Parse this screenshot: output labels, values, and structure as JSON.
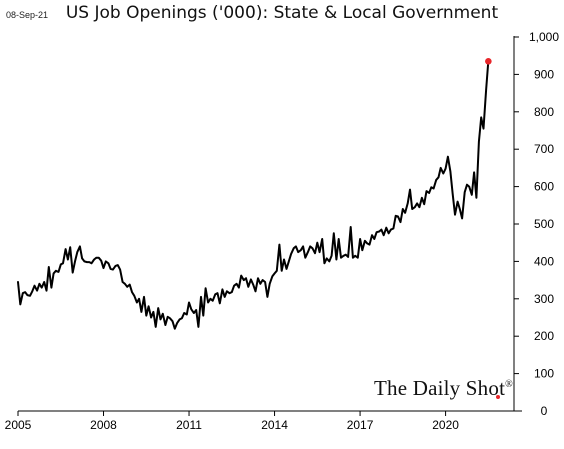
{
  "header": {
    "date_stamp": "08-Sep-21",
    "title": "US Job Openings ('000): State & Local Government"
  },
  "watermark": {
    "text": "The Daily Shot",
    "mark": "®"
  },
  "colors": {
    "line": "#000000",
    "marker": "#e8262a",
    "axis": "#000000",
    "background": "#ffffff"
  },
  "chart_data": {
    "type": "line",
    "title": "US Job Openings ('000): State & Local Government",
    "xlabel": "",
    "ylabel": "",
    "xlim": [
      2005.0,
      2022.4
    ],
    "ylim": [
      0,
      1000
    ],
    "x_ticks": [
      2005,
      2008,
      2011,
      2014,
      2017,
      2020
    ],
    "x_tick_labels": [
      "2005",
      "2008",
      "2011",
      "2014",
      "2017",
      "2020"
    ],
    "y_ticks": [
      0,
      100,
      200,
      300,
      400,
      500,
      600,
      700,
      800,
      900,
      1000
    ],
    "y_tick_labels": [
      "0",
      "100",
      "200",
      "300",
      "400",
      "500",
      "600",
      "700",
      "800",
      "900",
      "1,000"
    ],
    "y_axis_side": "right",
    "grid": false,
    "legend": "none",
    "series": [
      {
        "points": [
          [
            2005.0,
            345
          ],
          [
            2005.08,
            285
          ],
          [
            2005.17,
            315
          ],
          [
            2005.25,
            318
          ],
          [
            2005.33,
            310
          ],
          [
            2005.42,
            308
          ],
          [
            2005.5,
            320
          ],
          [
            2005.58,
            335
          ],
          [
            2005.67,
            322
          ],
          [
            2005.75,
            340
          ],
          [
            2005.83,
            330
          ],
          [
            2005.92,
            345
          ],
          [
            2006.0,
            322
          ],
          [
            2006.08,
            385
          ],
          [
            2006.17,
            330
          ],
          [
            2006.25,
            368
          ],
          [
            2006.33,
            375
          ],
          [
            2006.42,
            372
          ],
          [
            2006.5,
            392
          ],
          [
            2006.58,
            395
          ],
          [
            2006.67,
            433
          ],
          [
            2006.75,
            405
          ],
          [
            2006.83,
            438
          ],
          [
            2006.92,
            370
          ],
          [
            2007.0,
            400
          ],
          [
            2007.08,
            425
          ],
          [
            2007.17,
            440
          ],
          [
            2007.25,
            408
          ],
          [
            2007.33,
            400
          ],
          [
            2007.42,
            398
          ],
          [
            2007.5,
            398
          ],
          [
            2007.58,
            395
          ],
          [
            2007.67,
            405
          ],
          [
            2007.75,
            410
          ],
          [
            2007.83,
            410
          ],
          [
            2007.92,
            402
          ],
          [
            2008.0,
            382
          ],
          [
            2008.08,
            400
          ],
          [
            2008.17,
            395
          ],
          [
            2008.25,
            380
          ],
          [
            2008.33,
            378
          ],
          [
            2008.42,
            388
          ],
          [
            2008.5,
            390
          ],
          [
            2008.58,
            378
          ],
          [
            2008.67,
            345
          ],
          [
            2008.75,
            340
          ],
          [
            2008.83,
            332
          ],
          [
            2008.92,
            338
          ],
          [
            2009.0,
            318
          ],
          [
            2009.08,
            308
          ],
          [
            2009.17,
            290
          ],
          [
            2009.25,
            300
          ],
          [
            2009.33,
            265
          ],
          [
            2009.42,
            305
          ],
          [
            2009.5,
            255
          ],
          [
            2009.58,
            280
          ],
          [
            2009.67,
            250
          ],
          [
            2009.75,
            265
          ],
          [
            2009.83,
            225
          ],
          [
            2009.92,
            275
          ],
          [
            2010.0,
            245
          ],
          [
            2010.08,
            260
          ],
          [
            2010.17,
            230
          ],
          [
            2010.25,
            252
          ],
          [
            2010.33,
            248
          ],
          [
            2010.42,
            240
          ],
          [
            2010.5,
            220
          ],
          [
            2010.58,
            235
          ],
          [
            2010.67,
            245
          ],
          [
            2010.75,
            248
          ],
          [
            2010.83,
            262
          ],
          [
            2010.92,
            258
          ],
          [
            2011.0,
            290
          ],
          [
            2011.08,
            272
          ],
          [
            2011.17,
            262
          ],
          [
            2011.25,
            270
          ],
          [
            2011.33,
            225
          ],
          [
            2011.42,
            305
          ],
          [
            2011.5,
            255
          ],
          [
            2011.58,
            328
          ],
          [
            2011.67,
            290
          ],
          [
            2011.75,
            300
          ],
          [
            2011.83,
            295
          ],
          [
            2011.92,
            312
          ],
          [
            2012.0,
            315
          ],
          [
            2012.08,
            288
          ],
          [
            2012.17,
            325
          ],
          [
            2012.25,
            305
          ],
          [
            2012.33,
            320
          ],
          [
            2012.42,
            315
          ],
          [
            2012.5,
            318
          ],
          [
            2012.58,
            335
          ],
          [
            2012.67,
            340
          ],
          [
            2012.75,
            330
          ],
          [
            2012.83,
            362
          ],
          [
            2012.92,
            350
          ],
          [
            2013.0,
            355
          ],
          [
            2013.08,
            332
          ],
          [
            2013.17,
            352
          ],
          [
            2013.25,
            338
          ],
          [
            2013.33,
            320
          ],
          [
            2013.42,
            355
          ],
          [
            2013.5,
            340
          ],
          [
            2013.58,
            350
          ],
          [
            2013.67,
            345
          ],
          [
            2013.75,
            305
          ],
          [
            2013.83,
            340
          ],
          [
            2013.92,
            360
          ],
          [
            2014.0,
            368
          ],
          [
            2014.08,
            375
          ],
          [
            2014.17,
            445
          ],
          [
            2014.25,
            375
          ],
          [
            2014.33,
            405
          ],
          [
            2014.42,
            380
          ],
          [
            2014.5,
            400
          ],
          [
            2014.58,
            420
          ],
          [
            2014.67,
            435
          ],
          [
            2014.75,
            440
          ],
          [
            2014.83,
            425
          ],
          [
            2014.92,
            430
          ],
          [
            2015.0,
            440
          ],
          [
            2015.08,
            410
          ],
          [
            2015.17,
            425
          ],
          [
            2015.25,
            440
          ],
          [
            2015.33,
            435
          ],
          [
            2015.42,
            422
          ],
          [
            2015.5,
            450
          ],
          [
            2015.58,
            425
          ],
          [
            2015.67,
            460
          ],
          [
            2015.75,
            395
          ],
          [
            2015.83,
            408
          ],
          [
            2015.92,
            400
          ],
          [
            2016.0,
            415
          ],
          [
            2016.08,
            475
          ],
          [
            2016.17,
            405
          ],
          [
            2016.25,
            460
          ],
          [
            2016.33,
            410
          ],
          [
            2016.42,
            415
          ],
          [
            2016.5,
            418
          ],
          [
            2016.58,
            412
          ],
          [
            2016.67,
            492
          ],
          [
            2016.75,
            410
          ],
          [
            2016.83,
            415
          ],
          [
            2016.92,
            410
          ],
          [
            2017.0,
            460
          ],
          [
            2017.08,
            430
          ],
          [
            2017.17,
            455
          ],
          [
            2017.25,
            448
          ],
          [
            2017.33,
            445
          ],
          [
            2017.42,
            470
          ],
          [
            2017.5,
            460
          ],
          [
            2017.58,
            478
          ],
          [
            2017.67,
            480
          ],
          [
            2017.75,
            485
          ],
          [
            2017.83,
            470
          ],
          [
            2017.92,
            490
          ],
          [
            2018.0,
            475
          ],
          [
            2018.08,
            485
          ],
          [
            2018.17,
            488
          ],
          [
            2018.25,
            522
          ],
          [
            2018.33,
            520
          ],
          [
            2018.42,
            505
          ],
          [
            2018.5,
            540
          ],
          [
            2018.58,
            530
          ],
          [
            2018.67,
            555
          ],
          [
            2018.75,
            592
          ],
          [
            2018.83,
            540
          ],
          [
            2018.92,
            545
          ],
          [
            2019.0,
            555
          ],
          [
            2019.08,
            545
          ],
          [
            2019.17,
            570
          ],
          [
            2019.25,
            553
          ],
          [
            2019.33,
            588
          ],
          [
            2019.42,
            583
          ],
          [
            2019.5,
            598
          ],
          [
            2019.58,
            595
          ],
          [
            2019.67,
            618
          ],
          [
            2019.75,
            625
          ],
          [
            2019.83,
            650
          ],
          [
            2019.92,
            635
          ],
          [
            2020.0,
            648
          ],
          [
            2020.08,
            680
          ],
          [
            2020.17,
            640
          ],
          [
            2020.25,
            580
          ],
          [
            2020.33,
            525
          ],
          [
            2020.42,
            560
          ],
          [
            2020.5,
            540
          ],
          [
            2020.58,
            515
          ],
          [
            2020.67,
            585
          ],
          [
            2020.75,
            605
          ],
          [
            2020.83,
            600
          ],
          [
            2020.92,
            578
          ],
          [
            2021.0,
            638
          ],
          [
            2021.08,
            570
          ],
          [
            2021.17,
            720
          ],
          [
            2021.25,
            785
          ],
          [
            2021.33,
            755
          ],
          [
            2021.42,
            858
          ],
          [
            2021.5,
            935
          ]
        ]
      }
    ],
    "highlight_point": [
      2021.5,
      935
    ]
  }
}
